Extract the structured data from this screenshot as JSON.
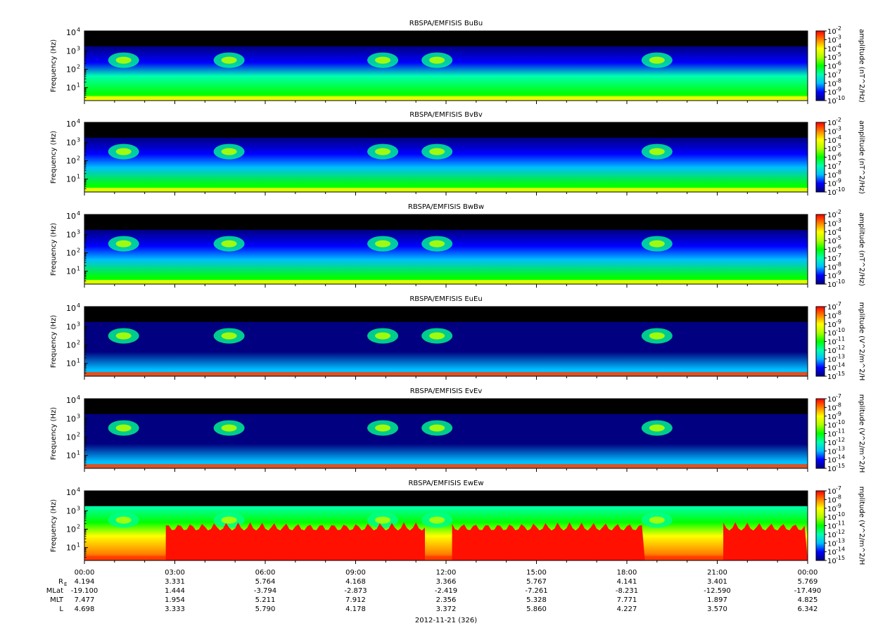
{
  "figure": {
    "date_label": "2012-11-21 (326)",
    "time_ticks": [
      "00:00",
      "03:00",
      "06:00",
      "09:00",
      "12:00",
      "15:00",
      "18:00",
      "21:00",
      "00:00"
    ]
  },
  "chart_data": [
    {
      "type": "heatmap",
      "title": "RBSPA/EMFISIS  BuBu",
      "ylabel": "Frequency (Hz)",
      "y_scale": "log",
      "y_ticks": [
        "10",
        "10",
        "10",
        "10"
      ],
      "y_tick_exps": [
        "1",
        "2",
        "3",
        "4"
      ],
      "ylim": [
        2,
        12000
      ],
      "colorbar_label": "amplitude (nT^2/Hz)",
      "colorbar_ticks": [
        "10",
        "10",
        "10",
        "10",
        "10",
        "10",
        "10",
        "10",
        "10"
      ],
      "colorbar_exps": [
        "-2",
        "-3",
        "-4",
        "-5",
        "-6",
        "-7",
        "-8",
        "-9",
        "-10"
      ],
      "crange": [
        -10,
        -2
      ],
      "bg_level": 0.58
    },
    {
      "type": "heatmap",
      "title": "RBSPA/EMFISIS  BvBv",
      "ylabel": "Frequency (Hz)",
      "y_scale": "log",
      "y_ticks": [
        "10",
        "10",
        "10",
        "10"
      ],
      "y_tick_exps": [
        "1",
        "2",
        "3",
        "4"
      ],
      "ylim": [
        2,
        12000
      ],
      "colorbar_label": "amplitude (nT^2/Hz)",
      "colorbar_ticks": [
        "10",
        "10",
        "10",
        "10",
        "10",
        "10",
        "10",
        "10",
        "10"
      ],
      "colorbar_exps": [
        "-2",
        "-3",
        "-4",
        "-5",
        "-6",
        "-7",
        "-8",
        "-9",
        "-10"
      ],
      "crange": [
        -10,
        -2
      ],
      "bg_level": 0.55
    },
    {
      "type": "heatmap",
      "title": "RBSPA/EMFISIS  BwBw",
      "ylabel": "Frequency (Hz)",
      "y_scale": "log",
      "y_ticks": [
        "10",
        "10",
        "10",
        "10"
      ],
      "y_tick_exps": [
        "1",
        "2",
        "3",
        "4"
      ],
      "ylim": [
        2,
        12000
      ],
      "colorbar_label": "amplitude (nT^2/Hz)",
      "colorbar_ticks": [
        "10",
        "10",
        "10",
        "10",
        "10",
        "10",
        "10",
        "10",
        "10"
      ],
      "colorbar_exps": [
        "-2",
        "-3",
        "-4",
        "-5",
        "-6",
        "-7",
        "-8",
        "-9",
        "-10"
      ],
      "crange": [
        -10,
        -2
      ],
      "bg_level": 0.55
    },
    {
      "type": "heatmap",
      "title": "RBSPA/EMFISIS  EuEu",
      "ylabel": "Frequency (Hz)",
      "y_scale": "log",
      "y_ticks": [
        "10",
        "10",
        "10",
        "10"
      ],
      "y_tick_exps": [
        "1",
        "2",
        "3",
        "4"
      ],
      "ylim": [
        2,
        12000
      ],
      "colorbar_label": "mplitude (V^2/m^2/H",
      "colorbar_ticks": [
        "10",
        "10",
        "10",
        "10",
        "10",
        "10",
        "10",
        "10",
        "10"
      ],
      "colorbar_exps": [
        "-7",
        "-8",
        "-9",
        "-10",
        "-11",
        "-12",
        "-13",
        "-14",
        "-15"
      ],
      "crange": [
        -15,
        -7
      ],
      "bg_level": 0.3
    },
    {
      "type": "heatmap",
      "title": "RBSPA/EMFISIS  EvEv",
      "ylabel": "Frequency (Hz)",
      "y_scale": "log",
      "y_ticks": [
        "10",
        "10",
        "10",
        "10"
      ],
      "y_tick_exps": [
        "1",
        "2",
        "3",
        "4"
      ],
      "ylim": [
        2,
        12000
      ],
      "colorbar_label": "mplitude (V^2/m^2/H",
      "colorbar_ticks": [
        "10",
        "10",
        "10",
        "10",
        "10",
        "10",
        "10",
        "10",
        "10"
      ],
      "colorbar_exps": [
        "-7",
        "-8",
        "-9",
        "-10",
        "-11",
        "-12",
        "-13",
        "-14",
        "-15"
      ],
      "crange": [
        -15,
        -7
      ],
      "bg_level": 0.3
    },
    {
      "type": "heatmap",
      "title": "RBSPA/EMFISIS  EwEw",
      "ylabel": "Frequency (Hz)",
      "y_scale": "log",
      "y_ticks": [
        "10",
        "10",
        "10",
        "10"
      ],
      "y_tick_exps": [
        "1",
        "2",
        "3",
        "4"
      ],
      "ylim": [
        2,
        12000
      ],
      "colorbar_label": "mplitude (V^2/m^2/H",
      "colorbar_ticks": [
        "10",
        "10",
        "10",
        "10",
        "10",
        "10",
        "10",
        "10",
        "10"
      ],
      "colorbar_exps": [
        "-7",
        "-8",
        "-9",
        "-10",
        "-11",
        "-12",
        "-13",
        "-14",
        "-15"
      ],
      "crange": [
        -15,
        -7
      ],
      "bg_level": 0.95
    }
  ],
  "ephemeris": {
    "row_labels": [
      "R",
      "MLat",
      "MLT",
      "L"
    ],
    "re_subscript": "E",
    "rows": [
      [
        "4.194",
        "3.331",
        "5.764",
        "4.168",
        "3.366",
        "5.767",
        "4.141",
        "3.401",
        "5.769"
      ],
      [
        "-19.100",
        "1.444",
        "-3.794",
        "-2.873",
        "-2.419",
        "-7.261",
        "-8.231",
        "-12.590",
        "-17.490"
      ],
      [
        "7.477",
        "1.954",
        "5.211",
        "7.912",
        "2.356",
        "5.328",
        "7.771",
        "1.897",
        "4.825"
      ],
      [
        "4.698",
        "3.333",
        "5.790",
        "4.178",
        "3.372",
        "5.860",
        "4.227",
        "3.570",
        "6.342"
      ]
    ]
  },
  "colormap": [
    "#000080",
    "#0000ff",
    "#00bfff",
    "#00ffb0",
    "#00ff00",
    "#b0ff00",
    "#ffff00",
    "#ff8000",
    "#ff0000"
  ]
}
